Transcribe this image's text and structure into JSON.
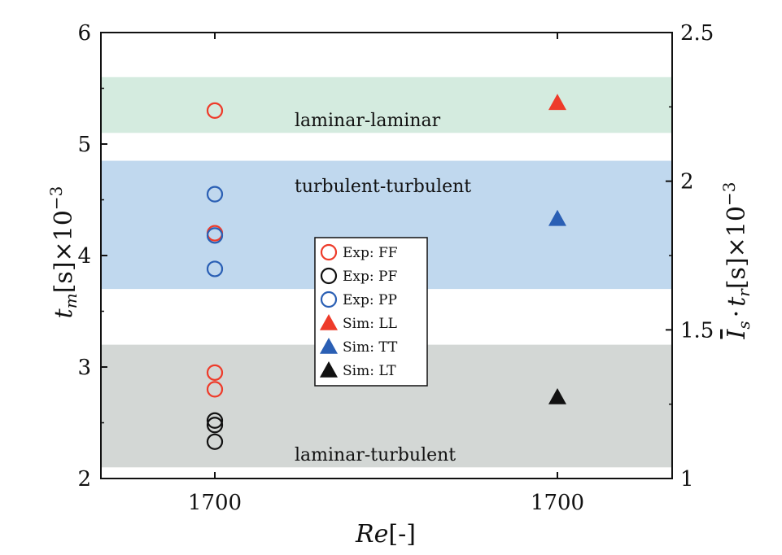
{
  "chart_data": {
    "type": "scatter",
    "xlabel": {
      "main": "Re",
      "unit": "[-]"
    },
    "ylabel_left": {
      "var": "t",
      "sub": "m",
      "unit": "[s]",
      "mult": "×10",
      "exp": "−3"
    },
    "ylabel_right": {
      "var1": "I",
      "sub1": "s",
      "dot": "·",
      "var2": "t",
      "sub2": "r",
      "unit": "[s]",
      "mult": "×10",
      "exp": "−3"
    },
    "x_ticks": [
      {
        "key": "exp",
        "label": "1700"
      },
      {
        "key": "sim",
        "label": "1700"
      }
    ],
    "ylim_left": [
      2,
      6
    ],
    "yticks_left": [
      "2",
      "3",
      "4",
      "5",
      "6"
    ],
    "ylim_right": [
      1,
      2.5
    ],
    "yticks_right": [
      "1",
      "1.5",
      "2",
      "2.5"
    ],
    "bands": [
      {
        "name": "laminar-laminar",
        "label": "laminar-laminar",
        "y0": 5.1,
        "y1": 5.6,
        "color": "#d4ebdf"
      },
      {
        "name": "turbulent-turbulent",
        "label": "turbulent-turbulent",
        "y0": 3.7,
        "y1": 4.85,
        "color": "#c0d8ee"
      },
      {
        "name": "laminar-turbulent",
        "label": "laminar-turbulent",
        "y0": 2.1,
        "y1": 3.2,
        "color": "#d3d7d5"
      }
    ],
    "series": [
      {
        "name": "Exp: FF",
        "marker": "circle",
        "color": "#ee3b2a",
        "axis": "left",
        "x": "exp",
        "values": [
          5.3,
          4.2,
          2.95,
          2.8
        ]
      },
      {
        "name": "Exp: PF",
        "marker": "circle",
        "color": "#111111",
        "axis": "left",
        "x": "exp",
        "values": [
          2.52,
          2.48,
          2.33
        ]
      },
      {
        "name": "Exp: PP",
        "marker": "circle",
        "color": "#2a5fb4",
        "axis": "left",
        "x": "exp",
        "values": [
          4.55,
          4.18,
          3.88
        ]
      },
      {
        "name": "Sim: LL",
        "marker": "triangle",
        "color": "#ee3b2a",
        "axis": "left",
        "x": "sim",
        "values": [
          5.37
        ]
      },
      {
        "name": "Sim: TT",
        "marker": "triangle",
        "color": "#2a5fb4",
        "axis": "left",
        "x": "sim",
        "values": [
          4.33
        ]
      },
      {
        "name": "Sim: LT",
        "marker": "triangle",
        "color": "#111111",
        "axis": "left",
        "x": "sim",
        "values": [
          2.73
        ]
      }
    ],
    "legend_position": "center"
  }
}
